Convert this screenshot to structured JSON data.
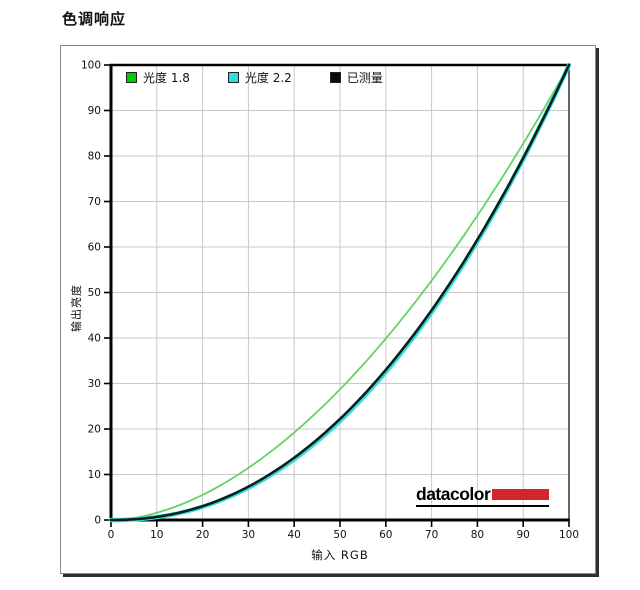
{
  "page": {
    "title": "色调响应"
  },
  "chart_data": {
    "type": "line",
    "title": "色调响应",
    "xlabel": "输入 RGB",
    "ylabel": "输出亮度",
    "xlim": [
      0,
      100
    ],
    "ylim": [
      0,
      100
    ],
    "xticks": [
      0,
      10,
      20,
      30,
      40,
      50,
      60,
      70,
      80,
      90,
      100
    ],
    "yticks": [
      0,
      10,
      20,
      30,
      40,
      50,
      60,
      70,
      80,
      90,
      100
    ],
    "grid": true,
    "grid_color": "#c9c9c9",
    "legend_position": "top-inside",
    "x": [
      0,
      10,
      20,
      30,
      40,
      50,
      60,
      70,
      80,
      90,
      100
    ],
    "series": [
      {
        "name": "光度 1.8",
        "gamma": 1.8,
        "color": "#62d462",
        "swatch": "#00cc00",
        "width": 1.8,
        "values": [
          0,
          1.6,
          5.5,
          11.5,
          19.2,
          28.7,
          39.9,
          52.6,
          66.9,
          82.7,
          100
        ]
      },
      {
        "name": "光度 2.2",
        "gamma": 2.2,
        "color": "#3cdcd8",
        "swatch": "#2bdee2",
        "width": 4.4,
        "values": [
          0,
          0.6,
          2.9,
          7.1,
          13.3,
          21.8,
          32.5,
          45.6,
          61.2,
          79.3,
          100
        ]
      },
      {
        "name": "已测量",
        "gamma": 2.17,
        "color": "#08211d",
        "swatch": "#0a0a0a",
        "width": 2.6,
        "values": [
          0,
          0.7,
          3.0,
          7.3,
          13.7,
          22.2,
          33.0,
          46.1,
          61.6,
          79.6,
          100
        ]
      }
    ]
  },
  "logo": {
    "text": "datacolor",
    "bar_color": "#d0262c"
  }
}
